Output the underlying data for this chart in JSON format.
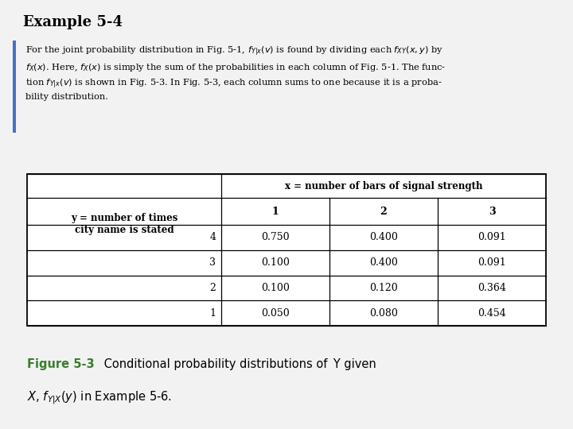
{
  "title": "Example 5-4",
  "col_header_top": "x = number of bars of signal strength",
  "col_header_vals": [
    "1",
    "2",
    "3"
  ],
  "row_header_label": "y = number of times\ncity name is stated",
  "row_vals": [
    "4",
    "3",
    "2",
    "1"
  ],
  "table_data": [
    [
      "0.750",
      "0.400",
      "0.091"
    ],
    [
      "0.100",
      "0.400",
      "0.091"
    ],
    [
      "0.100",
      "0.120",
      "0.364"
    ],
    [
      "0.050",
      "0.080",
      "0.454"
    ]
  ],
  "caption_bold": "Figure 5-3",
  "caption_fig_color": "#3a7d2c",
  "background_color": "#f2f2f2",
  "table_bg": "#ffffff",
  "border_color": "#000000",
  "blue_bar_color": "#4472c4",
  "title_fontsize": 13,
  "body_fontsize": 8.2,
  "table_fontsize": 8.5,
  "caption_fontsize": 10.5
}
